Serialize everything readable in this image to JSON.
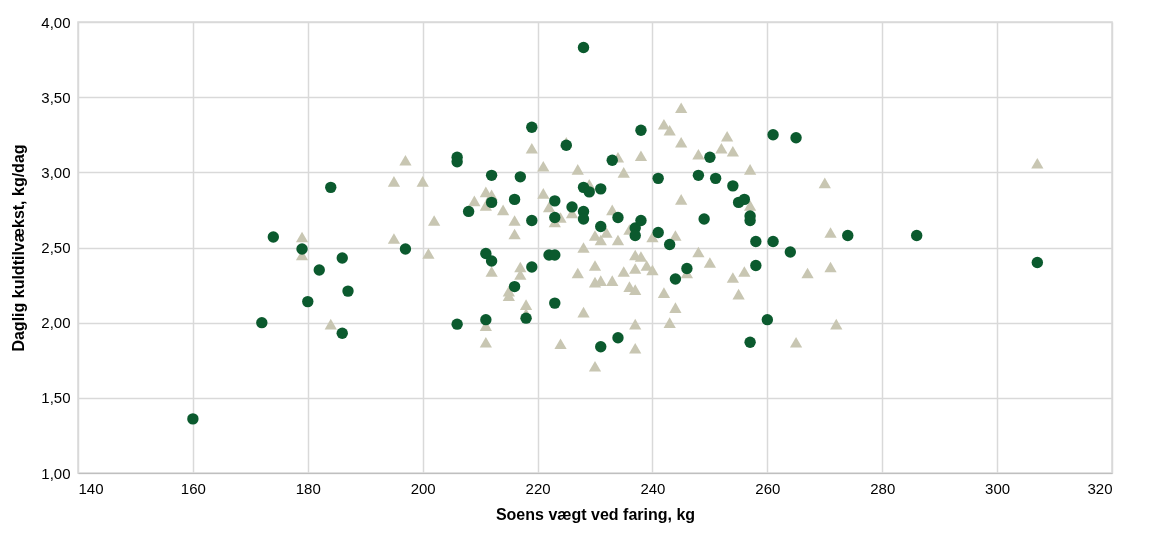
{
  "chart_data": {
    "type": "scatter",
    "xlabel": "Soens vægt ved faring, kg",
    "ylabel": "Daglig kuldtilvækst, kg/dag",
    "grid": true,
    "xlim": [
      140,
      320
    ],
    "xticks": [
      140,
      160,
      180,
      200,
      220,
      240,
      260,
      280,
      300,
      320
    ],
    "ylim": [
      1,
      4
    ],
    "yticks": [
      {
        "value": 1,
        "label": "1,00"
      },
      {
        "value": 1.5,
        "label": "1,50"
      },
      {
        "value": 2,
        "label": "2,00"
      },
      {
        "value": 2.5,
        "label": "2,50"
      },
      {
        "value": 3,
        "label": "3,00"
      },
      {
        "value": 3.5,
        "label": "3,50"
      },
      {
        "value": 4,
        "label": "4,00"
      }
    ],
    "series": [
      {
        "color": "#c8c6b2",
        "marker": "triangle",
        "x": [
          179,
          179,
          184,
          195,
          195,
          197,
          200,
          201,
          202,
          209,
          211,
          211,
          211,
          211,
          212,
          212,
          214,
          215,
          215,
          216,
          216,
          217,
          217,
          218,
          218,
          219,
          221,
          221,
          222,
          223,
          224,
          224,
          225,
          226,
          227,
          227,
          228,
          228,
          229,
          230,
          230,
          230,
          230,
          231,
          231,
          232,
          233,
          233,
          234,
          234,
          235,
          235,
          236,
          236,
          237,
          237,
          237,
          237,
          237,
          238,
          238,
          239,
          240,
          240,
          242,
          242,
          243,
          243,
          244,
          244,
          245,
          245,
          245,
          246,
          248,
          248,
          250,
          252,
          253,
          254,
          254,
          255,
          256,
          257,
          257,
          265,
          267,
          270,
          271,
          271,
          272,
          307
        ],
        "values": [
          2.57,
          2.45,
          1.99,
          2.94,
          2.56,
          3.08,
          2.94,
          2.46,
          2.68,
          2.81,
          2.87,
          2.78,
          1.98,
          1.87,
          2.34,
          2.85,
          2.75,
          2.21,
          2.18,
          2.68,
          2.59,
          2.37,
          2.32,
          2.12,
          2.06,
          3.16,
          2.86,
          3.04,
          2.77,
          2.67,
          1.86,
          2.7,
          3.2,
          2.73,
          2.33,
          3.02,
          2.07,
          2.5,
          2.92,
          1.71,
          2.38,
          2.27,
          2.58,
          2.28,
          2.55,
          2.6,
          2.28,
          2.75,
          3.1,
          2.55,
          3.0,
          2.34,
          2.24,
          2.62,
          2.22,
          2.45,
          2.36,
          1.99,
          1.83,
          3.11,
          2.44,
          2.38,
          2.35,
          2.57,
          2.2,
          3.32,
          3.28,
          2.0,
          2.1,
          2.58,
          2.82,
          3.43,
          3.2,
          2.33,
          3.12,
          2.47,
          2.4,
          3.16,
          3.24,
          3.14,
          2.3,
          2.19,
          2.34,
          3.02,
          2.78,
          1.87,
          2.33,
          2.93,
          2.6,
          2.37,
          1.99,
          3.06
        ]
      },
      {
        "color": "#0b5a2e",
        "marker": "circle",
        "x": [
          160,
          172,
          174,
          179,
          180,
          182,
          184,
          186,
          186,
          187,
          197,
          206,
          206,
          206,
          208,
          211,
          211,
          212,
          212,
          212,
          216,
          216,
          217,
          218,
          219,
          219,
          219,
          222,
          223,
          223,
          223,
          223,
          225,
          226,
          228,
          228,
          228,
          228,
          229,
          231,
          231,
          231,
          233,
          234,
          234,
          237,
          237,
          238,
          238,
          241,
          241,
          243,
          244,
          246,
          248,
          249,
          250,
          251,
          254,
          255,
          256,
          257,
          257,
          257,
          258,
          258,
          260,
          261,
          261,
          264,
          265,
          274,
          286,
          307
        ],
        "values": [
          1.36,
          2.0,
          2.57,
          2.49,
          2.14,
          2.35,
          2.9,
          2.43,
          1.93,
          2.21,
          2.49,
          3.1,
          3.07,
          1.99,
          2.74,
          2.46,
          2.02,
          2.98,
          2.41,
          2.8,
          2.82,
          2.24,
          2.97,
          2.03,
          3.3,
          2.68,
          2.37,
          2.45,
          2.45,
          2.81,
          2.7,
          2.13,
          3.18,
          2.77,
          3.83,
          2.9,
          2.74,
          2.69,
          2.87,
          2.89,
          2.64,
          1.84,
          3.08,
          2.7,
          1.9,
          2.63,
          2.58,
          3.28,
          2.68,
          2.96,
          2.6,
          2.52,
          2.29,
          2.36,
          2.98,
          2.69,
          3.1,
          2.96,
          2.91,
          2.8,
          2.82,
          2.71,
          2.68,
          1.87,
          2.54,
          2.38,
          2.02,
          3.25,
          2.54,
          2.47,
          3.23,
          2.58,
          2.58,
          2.4
        ]
      }
    ]
  }
}
